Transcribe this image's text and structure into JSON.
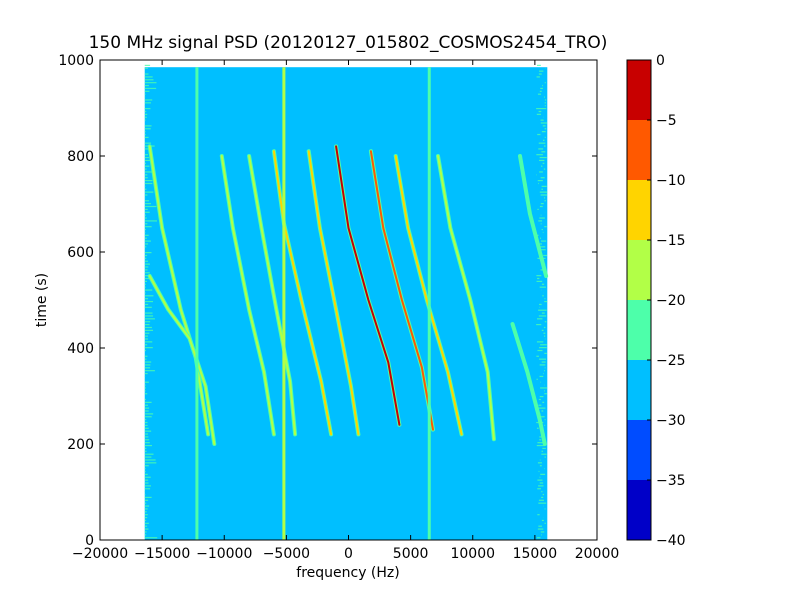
{
  "chart_data": {
    "type": "heatmap",
    "title": "150 MHz signal PSD (20120127_015802_COSMOS2454_TRO)",
    "xlabel": "frequency (Hz)",
    "ylabel": "time (s)",
    "xlim": [
      -20000,
      20000
    ],
    "ylim": [
      0,
      1000
    ],
    "x_ticks": [
      -20000,
      -15000,
      -10000,
      -5000,
      0,
      5000,
      10000,
      15000,
      20000
    ],
    "x_tick_labels": [
      "−20000",
      "−15000",
      "−10000",
      "−5000",
      "0",
      "5000",
      "10000",
      "15000",
      "20000"
    ],
    "y_ticks": [
      0,
      200,
      400,
      600,
      800,
      1000
    ],
    "y_tick_labels": [
      "0",
      "200",
      "400",
      "600",
      "800",
      "1000"
    ],
    "colorbar": {
      "range": [
        -40,
        0
      ],
      "ticks": [
        0,
        -5,
        -10,
        -15,
        -20,
        -25,
        -30,
        -35,
        -40
      ],
      "tick_labels": [
        "0",
        "−5",
        "−10",
        "−15",
        "−20",
        "−25",
        "−30",
        "−35",
        "−40"
      ],
      "levels": [
        {
          "from": -40,
          "to": -35,
          "color": "#0000c8"
        },
        {
          "from": -35,
          "to": -30,
          "color": "#004cff"
        },
        {
          "from": -30,
          "to": -25,
          "color": "#00bfff"
        },
        {
          "from": -25,
          "to": -20,
          "color": "#4dffaa"
        },
        {
          "from": -20,
          "to": -15,
          "color": "#b2ff47"
        },
        {
          "from": -15,
          "to": -10,
          "color": "#ffd400"
        },
        {
          "from": -10,
          "to": -5,
          "color": "#ff5900"
        },
        {
          "from": -5,
          "to": 0,
          "color": "#c80000"
        }
      ]
    },
    "data_extent": {
      "x": [
        -16400,
        16000
      ],
      "y": [
        0,
        985
      ],
      "background_level": -27.5
    },
    "vertical_lines": [
      {
        "x": -12200,
        "level": -22.5
      },
      {
        "x": -5200,
        "level": -17.5
      },
      {
        "x": 6500,
        "level": -22.5
      }
    ],
    "noise_bands": [
      {
        "x": [
          -16400,
          -14800
        ],
        "level": -22.5
      },
      {
        "x": [
          14800,
          16000
        ],
        "level": -22.5
      }
    ],
    "doppler_tracks": [
      {
        "points": [
          [
            -16000,
            820
          ],
          [
            -15000,
            650
          ],
          [
            -13500,
            480
          ],
          [
            -12300,
            380
          ],
          [
            -11300,
            220
          ]
        ],
        "level": -17.5
      },
      {
        "points": [
          [
            -16000,
            550
          ],
          [
            -14500,
            480
          ],
          [
            -12800,
            420
          ],
          [
            -11500,
            320
          ],
          [
            -10800,
            200
          ]
        ],
        "level": -17.5
      },
      {
        "points": [
          [
            -10200,
            800
          ],
          [
            -9300,
            650
          ],
          [
            -8000,
            480
          ],
          [
            -6800,
            350
          ],
          [
            -6000,
            220
          ]
        ],
        "level": -17.5
      },
      {
        "points": [
          [
            -8000,
            800
          ],
          [
            -7000,
            650
          ],
          [
            -5800,
            480
          ],
          [
            -4700,
            330
          ],
          [
            -4300,
            220
          ]
        ],
        "level": -17.5
      },
      {
        "points": [
          [
            -6000,
            810
          ],
          [
            -5200,
            660
          ],
          [
            -3800,
            500
          ],
          [
            -2200,
            330
          ],
          [
            -1400,
            220
          ]
        ],
        "level": -12.5
      },
      {
        "points": [
          [
            -3200,
            810
          ],
          [
            -2300,
            650
          ],
          [
            -1000,
            480
          ],
          [
            200,
            320
          ],
          [
            800,
            220
          ]
        ],
        "level": -12.5
      },
      {
        "points": [
          [
            -1000,
            820
          ],
          [
            0,
            650
          ],
          [
            1600,
            500
          ],
          [
            3200,
            370
          ],
          [
            4100,
            240
          ]
        ],
        "level": -2.5
      },
      {
        "points": [
          [
            1800,
            810
          ],
          [
            2800,
            650
          ],
          [
            4300,
            500
          ],
          [
            5900,
            360
          ],
          [
            6800,
            230
          ]
        ],
        "level": -7.5
      },
      {
        "points": [
          [
            3800,
            800
          ],
          [
            4800,
            650
          ],
          [
            6300,
            500
          ],
          [
            8000,
            350
          ],
          [
            9100,
            220
          ]
        ],
        "level": -12.5
      },
      {
        "points": [
          [
            7200,
            800
          ],
          [
            8200,
            650
          ],
          [
            9800,
            500
          ],
          [
            11200,
            350
          ],
          [
            11700,
            210
          ]
        ],
        "level": -17.5
      },
      {
        "points": [
          [
            13200,
            450
          ],
          [
            14400,
            350
          ],
          [
            15400,
            250
          ],
          [
            15800,
            200
          ]
        ],
        "level": -22.5
      },
      {
        "points": [
          [
            13800,
            800
          ],
          [
            14600,
            680
          ],
          [
            15500,
            590
          ],
          [
            15900,
            550
          ]
        ],
        "level": -22.5
      }
    ]
  }
}
